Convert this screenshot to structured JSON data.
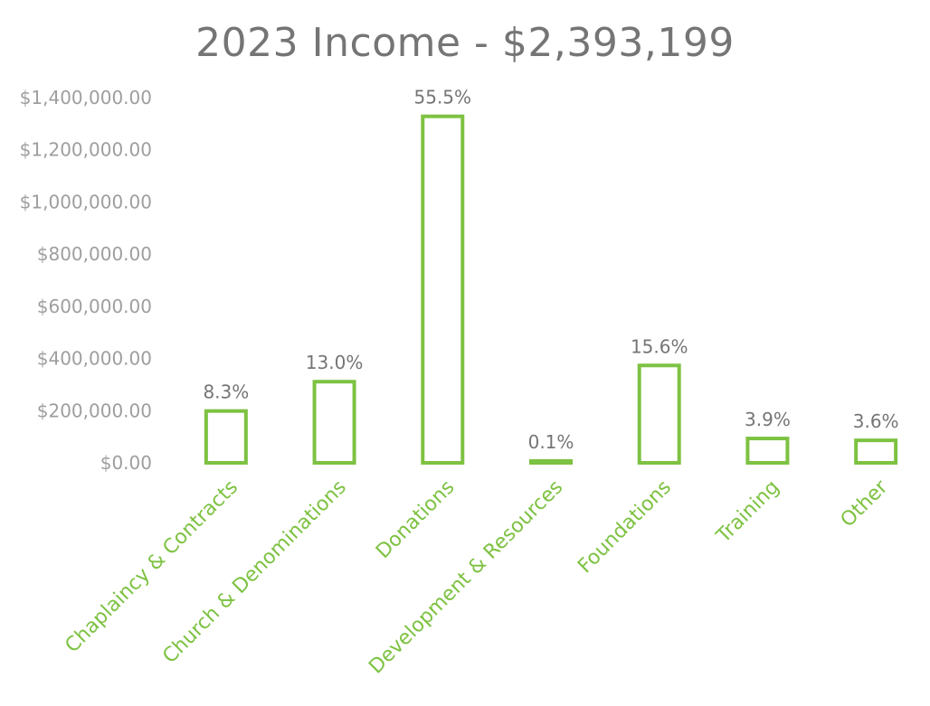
{
  "chart_data": {
    "type": "bar",
    "title": "2023 Income - $2,393,199",
    "xlabel": "",
    "ylabel": "",
    "categories": [
      "Chaplaincy & Contracts",
      "Church & Denominations",
      "Donations",
      "Development & Resources",
      "Foundations",
      "Training",
      "Other"
    ],
    "series": [
      {
        "values": [
          198635,
          311116,
          1328225,
          2393,
          373339,
          93335,
          86155
        ],
        "data_labels": [
          "8.3%",
          "13.0%",
          "55.5%",
          "0.1%",
          "15.6%",
          "3.9%",
          "3.6%"
        ]
      }
    ],
    "ylim": [
      0,
      1400000
    ],
    "yticks": [
      0,
      200000,
      400000,
      600000,
      800000,
      1000000,
      1200000,
      1400000
    ],
    "ytick_labels": [
      "$0.00",
      "$200,000.00",
      "$400,000.00",
      "$600,000.00",
      "$800,000.00",
      "$1,000,000.00",
      "$1,200,000.00",
      "$1,400,000.00"
    ],
    "grid": false,
    "legend": "none",
    "colors": {
      "bar_outline": "#7dc242",
      "bar_fill": "#ffffff",
      "category_label": "#7dc242",
      "data_label": "#757575",
      "axis_label": "#9e9e9e",
      "title": "#757575"
    }
  }
}
